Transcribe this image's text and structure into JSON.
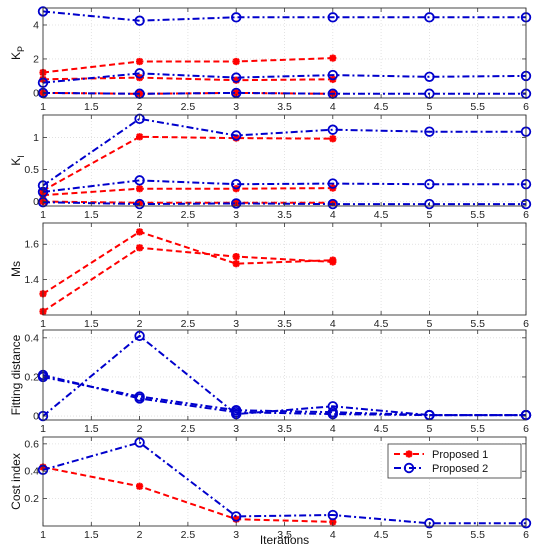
{
  "colors": {
    "proposed1": "#ff0000",
    "proposed2": "#0000cc",
    "grid": "#dcdcdc",
    "axis": "#333333"
  },
  "chart_data": [
    {
      "type": "line",
      "ylabel": "K",
      "ylabel_sub": "P",
      "xlim": [
        1,
        6
      ],
      "ylim": [
        -0.3,
        5
      ],
      "yticks": [
        0,
        2,
        4
      ],
      "xticks": [
        "1",
        "1.5",
        "2",
        "2.5",
        "3",
        "3.5",
        "4",
        "4.5",
        "5",
        "5.5",
        "6"
      ],
      "series": [
        {
          "group": "p1",
          "x": [
            1,
            2,
            3,
            4
          ],
          "values": [
            1.2,
            1.85,
            1.85,
            2.05
          ]
        },
        {
          "group": "p1",
          "x": [
            1,
            2,
            3,
            4
          ],
          "values": [
            0.8,
            0.9,
            0.75,
            0.8
          ]
        },
        {
          "group": "p1",
          "x": [
            1,
            2,
            3,
            4
          ],
          "values": [
            0.0,
            -0.05,
            0.0,
            -0.05
          ]
        },
        {
          "group": "p2",
          "x": [
            1,
            2,
            3,
            4,
            5,
            6
          ],
          "values": [
            4.8,
            4.25,
            4.45,
            4.45,
            4.45,
            4.45
          ]
        },
        {
          "group": "p2",
          "x": [
            1,
            2,
            3,
            4,
            5,
            6
          ],
          "values": [
            0.6,
            1.15,
            0.9,
            1.05,
            0.95,
            1.0
          ]
        },
        {
          "group": "p2",
          "x": [
            1,
            2,
            3,
            4,
            5,
            6
          ],
          "values": [
            0.0,
            -0.05,
            0.0,
            -0.05,
            -0.05,
            -0.05
          ]
        }
      ]
    },
    {
      "type": "line",
      "ylabel": "K",
      "ylabel_sub": "I",
      "xlim": [
        1,
        6
      ],
      "ylim": [
        -0.07,
        1.35
      ],
      "yticks": [
        0,
        0.5,
        1
      ],
      "xticks": [
        "1",
        "1.5",
        "2",
        "2.5",
        "3",
        "3.5",
        "4",
        "4.5",
        "5",
        "5.5",
        "6"
      ],
      "series": [
        {
          "group": "p1",
          "x": [
            1,
            2,
            3,
            4
          ],
          "values": [
            0.17,
            1.01,
            0.99,
            0.98
          ]
        },
        {
          "group": "p1",
          "x": [
            1,
            2,
            3,
            4
          ],
          "values": [
            0.1,
            0.2,
            0.2,
            0.21
          ]
        },
        {
          "group": "p1",
          "x": [
            1,
            2,
            3,
            4
          ],
          "values": [
            0.0,
            -0.02,
            -0.02,
            -0.02
          ]
        },
        {
          "group": "p2",
          "x": [
            1,
            2,
            3,
            4,
            5,
            6
          ],
          "values": [
            0.25,
            1.29,
            1.03,
            1.12,
            1.09,
            1.09
          ]
        },
        {
          "group": "p2",
          "x": [
            1,
            2,
            3,
            4,
            5,
            6
          ],
          "values": [
            0.15,
            0.33,
            0.27,
            0.28,
            0.27,
            0.27
          ]
        },
        {
          "group": "p2",
          "x": [
            1,
            2,
            3,
            4,
            5,
            6
          ],
          "values": [
            -0.01,
            -0.04,
            -0.03,
            -0.04,
            -0.04,
            -0.04
          ]
        }
      ]
    },
    {
      "type": "line",
      "ylabel": "Ms",
      "xlim": [
        1,
        6
      ],
      "ylim": [
        1.2,
        1.72
      ],
      "yticks": [
        1.4,
        1.6
      ],
      "xticks": [
        "1",
        "1.5",
        "2",
        "2.5",
        "3",
        "3.5",
        "4",
        "4.5",
        "5",
        "5.5",
        "6"
      ],
      "series": [
        {
          "group": "p1",
          "x": [
            1,
            2,
            3,
            4
          ],
          "values": [
            1.32,
            1.67,
            1.49,
            1.51
          ]
        },
        {
          "group": "p1",
          "x": [
            1,
            2,
            3,
            4
          ],
          "values": [
            1.22,
            1.58,
            1.53,
            1.5
          ]
        }
      ]
    },
    {
      "type": "line",
      "ylabel": "Fitting distance",
      "xlim": [
        1,
        6
      ],
      "ylim": [
        -0.02,
        0.44
      ],
      "yticks": [
        0,
        0.2,
        0.4
      ],
      "xticks": [
        "1",
        "1.5",
        "2",
        "2.5",
        "3",
        "3.5",
        "4",
        "4.5",
        "5",
        "5.5",
        "6"
      ],
      "series": [
        {
          "group": "p2",
          "x": [
            1,
            2,
            3,
            4,
            5,
            6
          ],
          "values": [
            0.0,
            0.41,
            0.01,
            0.05,
            0.005,
            0.005
          ]
        },
        {
          "group": "p2",
          "x": [
            1,
            2,
            3,
            4,
            5,
            6
          ],
          "values": [
            0.2,
            0.1,
            0.03,
            0.02,
            0.005,
            0.005
          ]
        },
        {
          "group": "p2",
          "x": [
            1,
            2,
            3,
            4,
            5,
            6
          ],
          "values": [
            0.21,
            0.09,
            0.02,
            0.01,
            0.005,
            0.005
          ]
        }
      ]
    },
    {
      "type": "line",
      "ylabel": "Cost index",
      "xlabel": "Iterations",
      "xlim": [
        1,
        6
      ],
      "ylim": [
        0,
        0.65
      ],
      "yticks": [
        0.2,
        0.4,
        0.6
      ],
      "xticks": [
        "1",
        "1.5",
        "2",
        "2.5",
        "3",
        "3.5",
        "4",
        "4.5",
        "5",
        "5.5",
        "6"
      ],
      "legend": {
        "placement": "top-right",
        "entries": [
          "Proposed 1",
          "Proposed 2"
        ]
      },
      "series": [
        {
          "name": "Proposed 1",
          "group": "p1",
          "x": [
            1,
            2,
            3,
            4
          ],
          "values": [
            0.43,
            0.29,
            0.05,
            0.03
          ]
        },
        {
          "name": "Proposed 2",
          "group": "p2",
          "x": [
            1,
            2,
            3,
            4,
            5,
            6
          ],
          "values": [
            0.41,
            0.61,
            0.07,
            0.08,
            0.02,
            0.02
          ]
        }
      ]
    }
  ]
}
